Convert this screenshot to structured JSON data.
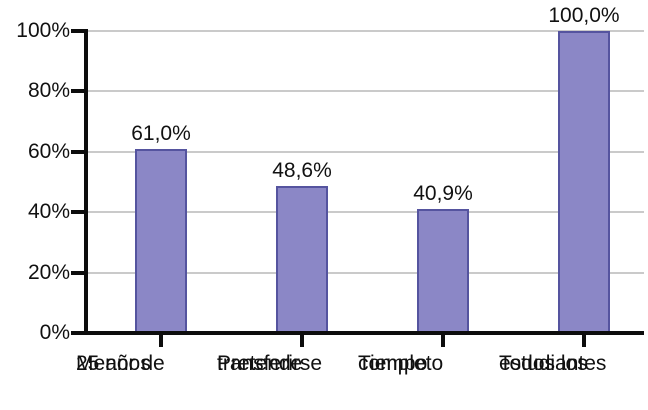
{
  "chart_data": {
    "type": "bar",
    "title": "",
    "xlabel": "",
    "ylabel": "",
    "categories": [
      "Menor de 25 años",
      "Pretende transferirse",
      "Tiempo completo",
      "Todos los estudiantes"
    ],
    "category_lines": [
      [
        "Menor de",
        "25 años"
      ],
      [
        "Pretende",
        "transferirse"
      ],
      [
        "Tiempo",
        "completo"
      ],
      [
        "Todos los",
        "estudiantes"
      ]
    ],
    "values": [
      61.0,
      48.6,
      40.9,
      100.0
    ],
    "value_labels": [
      "61,0%",
      "48,6%",
      "40,9%",
      "100,0%"
    ],
    "ylim": [
      0,
      100
    ],
    "ytick_values": [
      0,
      20,
      40,
      60,
      80,
      100
    ],
    "ytick_labels": [
      "0%",
      "20%",
      "40%",
      "60%",
      "80%",
      "100%"
    ],
    "grid": true,
    "legend": "none",
    "colors": {
      "bar_fill": "#8b87c6",
      "bar_border": "#55549f",
      "gridline": "#cacaca",
      "axis": "#0d0d0d",
      "text": "#111111",
      "background": "#ffffff"
    }
  }
}
